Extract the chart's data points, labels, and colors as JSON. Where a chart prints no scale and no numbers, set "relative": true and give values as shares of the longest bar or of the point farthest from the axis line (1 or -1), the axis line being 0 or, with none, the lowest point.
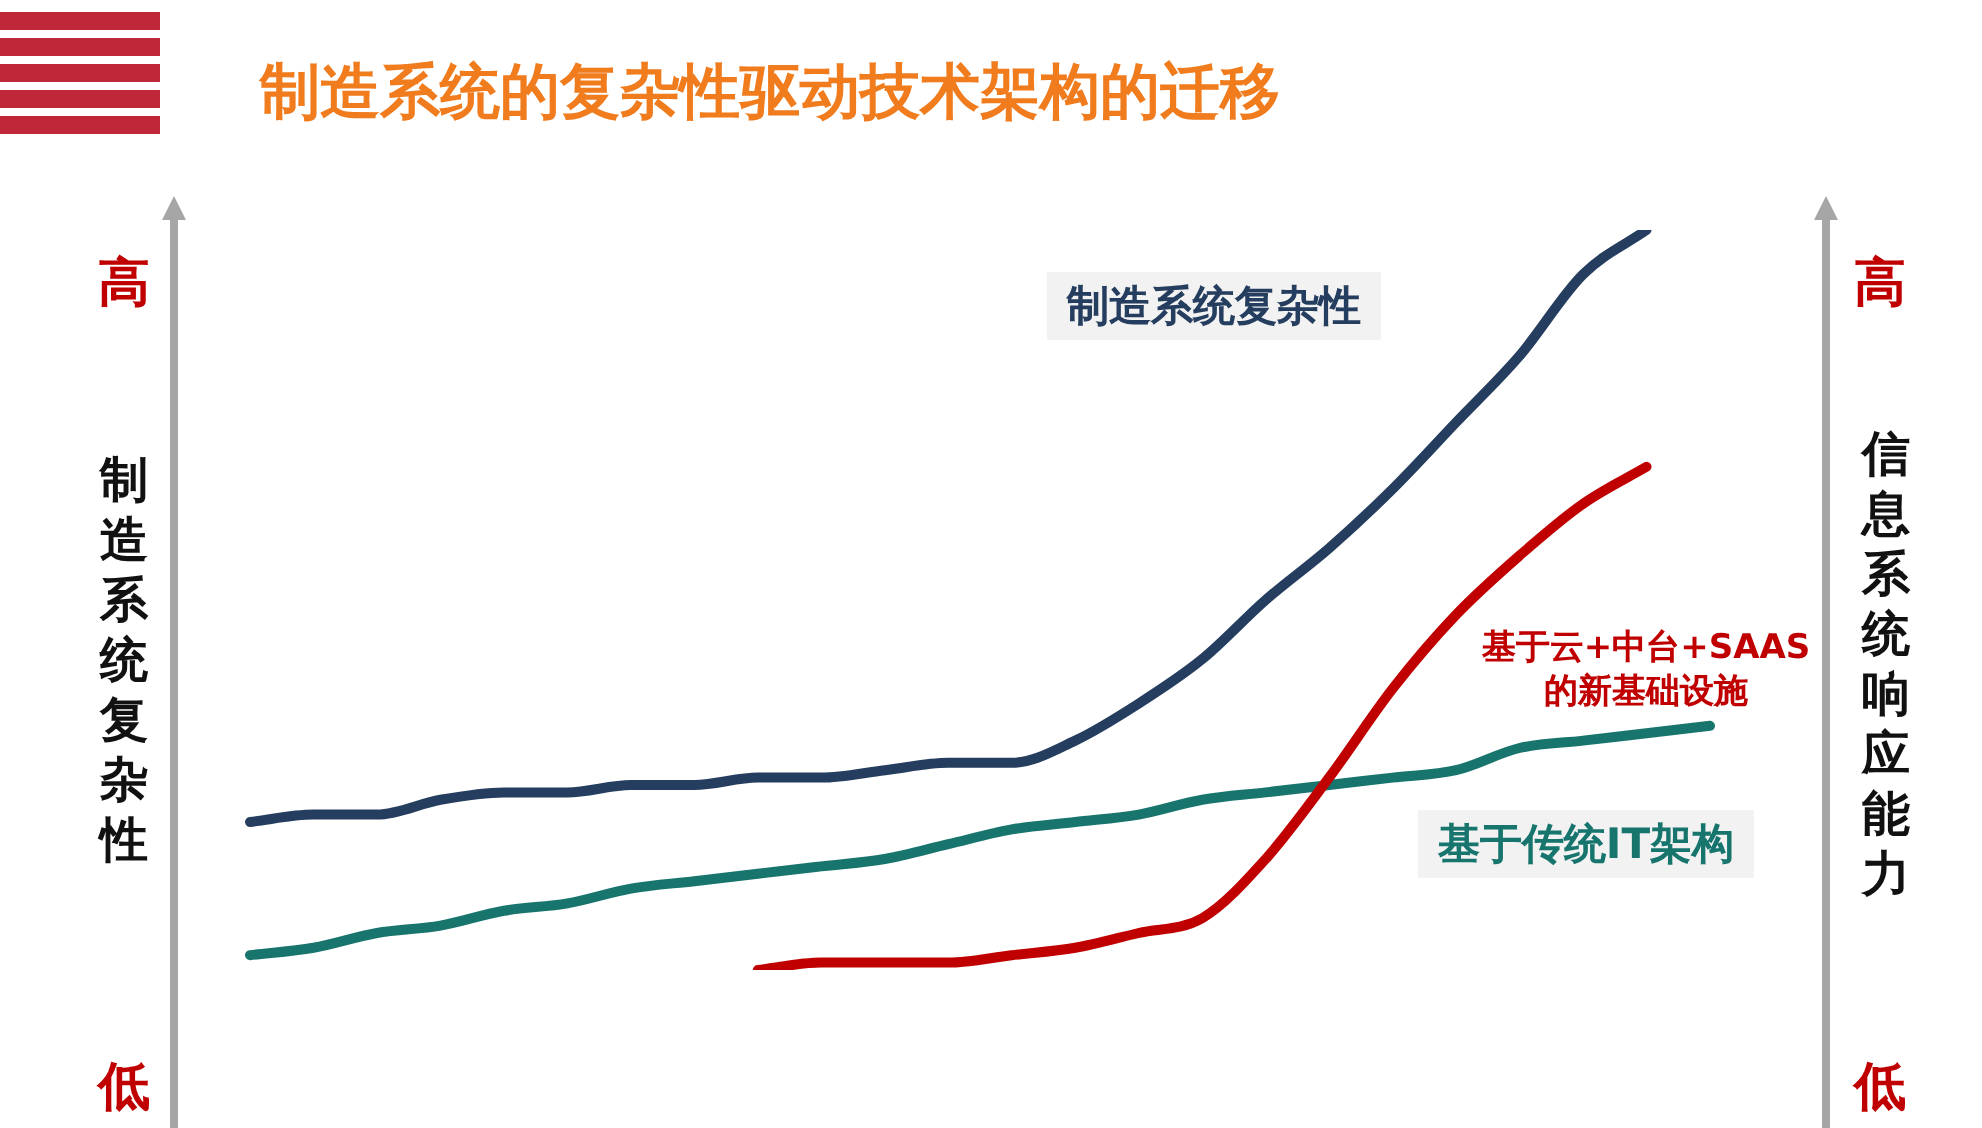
{
  "chart_data": {
    "type": "line",
    "title": "制造系统的复杂性驱动技术架构的迁移",
    "ylabel": "制造系统复杂性",
    "y2label": "信息系统响应能力",
    "relative": true,
    "categories": [
      null,
      null,
      null,
      null,
      null,
      null,
      null,
      null,
      null,
      null,
      null,
      null,
      null,
      null,
      null,
      null,
      null,
      null,
      null,
      null,
      null,
      null,
      null,
      null
    ],
    "series": [
      {
        "name": "制造系统复杂性",
        "color": "#253d5e",
        "values": [
          0.2,
          0.21,
          0.21,
          0.23,
          0.24,
          0.24,
          0.25,
          0.25,
          0.26,
          0.26,
          0.27,
          0.28,
          0.28,
          0.31,
          0.36,
          0.42,
          0.5,
          0.57,
          0.65,
          0.74,
          0.83,
          0.94,
          1,
          null
        ]
      },
      {
        "name": "基于云+中台+SAAS\n的新基础设施",
        "color": "#c00000",
        "values": [
          null,
          null,
          null,
          null,
          null,
          null,
          null,
          null,
          0,
          0.01,
          0.01,
          0.01,
          0.02,
          0.03,
          0.05,
          0.07,
          0.15,
          0.26,
          0.38,
          0.48,
          0.56,
          0.63,
          0.68,
          null
        ]
      },
      {
        "name": "基于传统IT架构",
        "color": "#17756e",
        "values": [
          0.02,
          0.03,
          0.05,
          0.06,
          0.08,
          0.09,
          0.11,
          0.12,
          0.13,
          0.14,
          0.15,
          0.17,
          0.19,
          0.2,
          0.21,
          0.23,
          0.24,
          0.25,
          0.26,
          0.27,
          0.3,
          0.31,
          0.32,
          0.33
        ]
      }
    ],
    "annotations": [
      "高",
      "低",
      "高",
      "低"
    ]
  }
}
